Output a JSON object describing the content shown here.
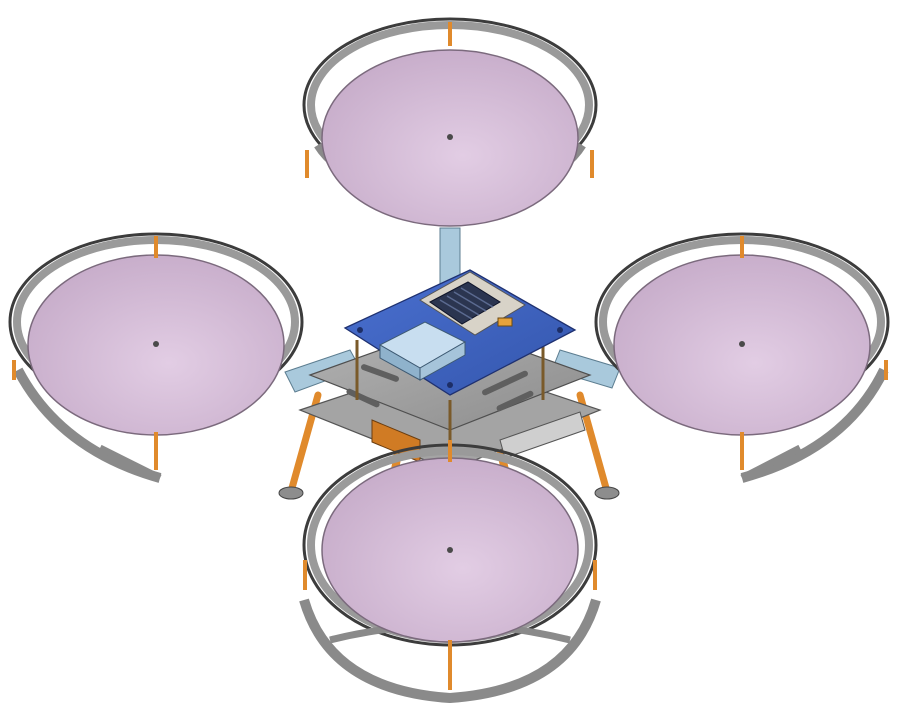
{
  "render": {
    "subject": "quadcopter-cad-model",
    "view": "isometric",
    "rotor_count": 4,
    "colors": {
      "background": "#ffffff",
      "disc_fill": "#cdb4cf",
      "disc_light": "#dcc6de",
      "guard_ring": "#8a8a8a",
      "guard_dark": "#3c3c3c",
      "standoff_orange": "#e08a2c",
      "frame_plate": "#9a9a9a",
      "top_plate_blue": "#3f63c2",
      "arm_blue": "#a9c9dc",
      "board_lightblue": "#b7d2e6",
      "heatsink_dark": "#2b3550"
    }
  }
}
